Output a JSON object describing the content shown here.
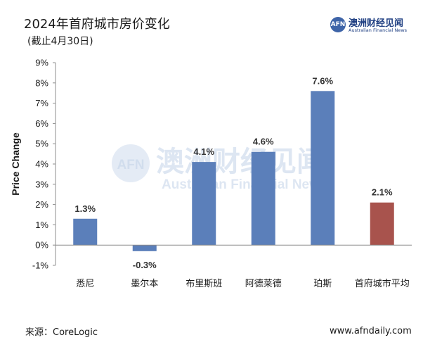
{
  "header": {
    "title": "2024年首府城市房价变化",
    "subtitle": "(截止4月30日)"
  },
  "logo": {
    "mark": "AFN",
    "name_cn": "澳洲财经见闻",
    "name_en": "Australian Financial News"
  },
  "watermark": {
    "mark": "AFN",
    "name_cn": "澳洲财经见闻",
    "name_en": "Australian Financial News"
  },
  "footer": {
    "source": "来源：CoreLogic",
    "website": "www.afndaily.com"
  },
  "chart_data": {
    "type": "bar",
    "ylabel": "Price Change",
    "xlabel": "",
    "ylim": [
      -1,
      9
    ],
    "yticks": [
      "-1%",
      "0%",
      "1%",
      "2%",
      "3%",
      "4%",
      "5%",
      "6%",
      "7%",
      "8%",
      "9%"
    ],
    "ytick_values": [
      -1,
      0,
      1,
      2,
      3,
      4,
      5,
      6,
      7,
      8,
      9
    ],
    "grid": false,
    "legend": "none",
    "categories": [
      "悉尼",
      "墨尔本",
      "布里斯班",
      "阿德莱德",
      "珀斯",
      "首府城市平均"
    ],
    "values": [
      1.3,
      -0.3,
      4.1,
      4.6,
      7.6,
      2.1
    ],
    "data_labels": [
      "1.3%",
      "-0.3%",
      "4.1%",
      "4.6%",
      "7.6%",
      "2.1%"
    ],
    "colors": [
      "#5b7fba",
      "#5b7fba",
      "#5b7fba",
      "#5b7fba",
      "#5b7fba",
      "#a8534d"
    ]
  }
}
